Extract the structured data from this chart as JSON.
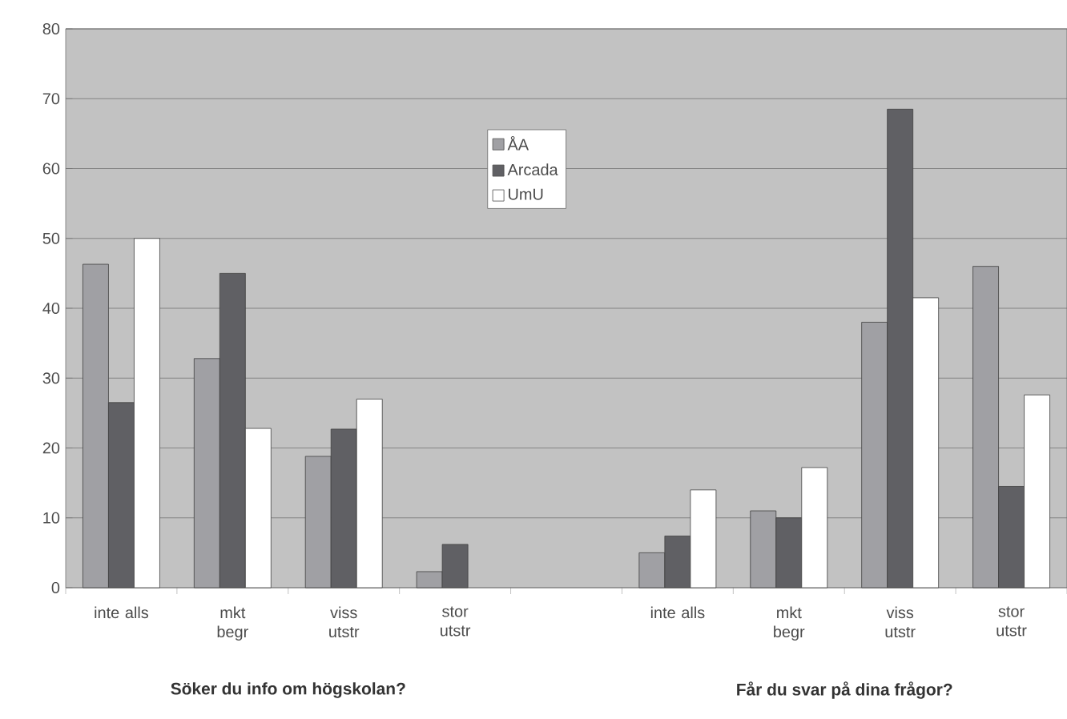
{
  "chart_data": {
    "type": "bar",
    "categories": [
      "inte alls",
      "mkt begr",
      "viss utstr",
      "stor utstr",
      null,
      "inte alls",
      "mkt begr",
      "viss utstr",
      "stor utstr"
    ],
    "series": [
      {
        "name": "ÅA",
        "color": "#a0a0a4",
        "values": [
          46.3,
          32.8,
          18.8,
          2.3,
          null,
          5,
          11,
          38,
          46
        ]
      },
      {
        "name": "Arcada",
        "color": "#606064",
        "values": [
          26.5,
          45,
          22.7,
          6.2,
          null,
          7.4,
          10,
          68.5,
          14.5
        ]
      },
      {
        "name": "UmU",
        "color": "#ffffff",
        "values": [
          50,
          22.8,
          27,
          null,
          null,
          14,
          17.2,
          41.5,
          27.6
        ]
      }
    ],
    "ylim": [
      0,
      80
    ],
    "yticks": [
      0,
      10,
      20,
      30,
      40,
      50,
      60,
      70,
      80
    ],
    "grid": "y",
    "legend": "top",
    "annotations": [
      "Söker du info om högskolan?",
      "Får du svar på dina frågor?"
    ]
  }
}
